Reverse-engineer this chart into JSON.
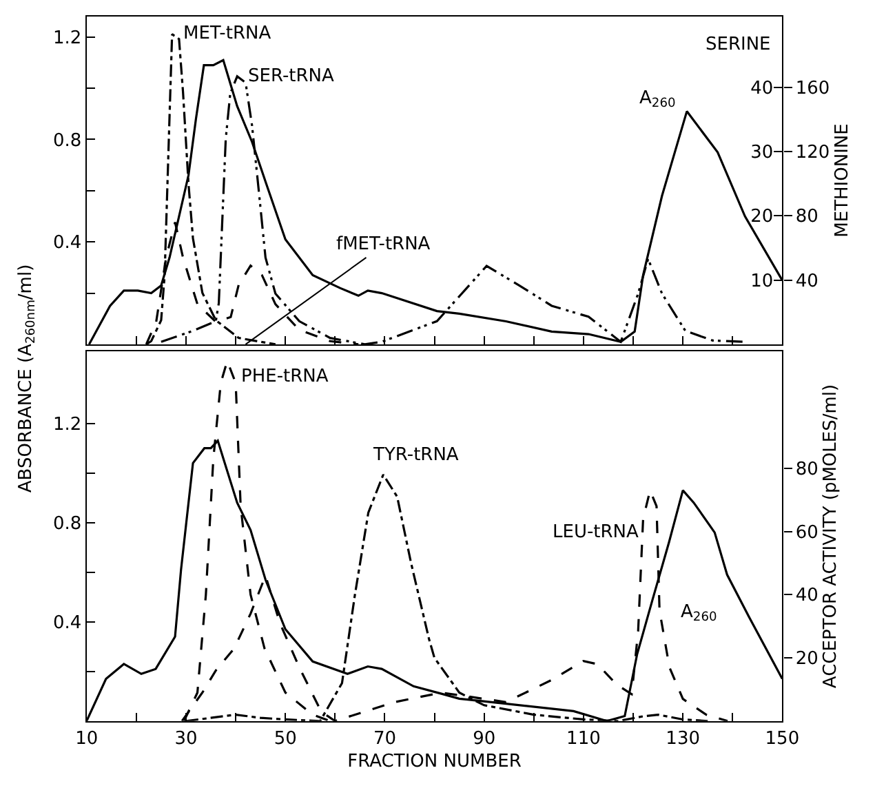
{
  "chart_data": [
    {
      "type": "line",
      "ylabel": "ABSORBANCE (A$_{260nm}$/ml)",
      "y2label": "METHIONINE",
      "y3label": "SERINE",
      "xlim": [
        10,
        150
      ],
      "xticks": [
        10,
        {
          "value": 20,
          "label": null
        },
        30,
        {
          "value": 40,
          "label": null
        },
        50,
        {
          "value": 60,
          "label": null
        },
        70,
        {
          "value": 80,
          "label": null
        },
        90,
        {
          "value": 100,
          "label": null
        },
        110,
        {
          "value": 120,
          "label": null
        },
        130,
        {
          "value": 140,
          "label": null
        },
        150
      ],
      "ylim": [
        0,
        1.28
      ],
      "yticks": [
        {
          "value": 0.2,
          "label": null
        },
        0.4,
        {
          "value": 0.6,
          "label": null
        },
        0.8,
        {
          "value": 1.0,
          "label": null
        },
        1.2
      ],
      "y2lim": [
        0,
        204
      ],
      "y2ticks": [
        40,
        80,
        120,
        160
      ],
      "y3lim": [
        0,
        51
      ],
      "y3ticks": [
        10,
        20,
        30,
        40
      ],
      "tick_labels": "y",
      "series": [
        {
          "name": "A$_{260}$",
          "color": "#000000",
          "line_style": "solid",
          "x": [
            10.5,
            14.7,
            17.5,
            20.3,
            23,
            25,
            26.7,
            28.6,
            30.5,
            32,
            33.6,
            35.5,
            37.5,
            38.9,
            40.3,
            43.3,
            46.1,
            50,
            55.5,
            61,
            64.7,
            66.6,
            69.4,
            80.5,
            85,
            94.4,
            103.6,
            111,
            117.5,
            120.3,
            122,
            125.8,
            130.8,
            137,
            142.5,
            150
          ],
          "values": [
            0,
            0.15,
            0.21,
            0.21,
            0.2,
            0.23,
            0.34,
            0.5,
            0.66,
            0.88,
            1.09,
            1.09,
            1.11,
            1.02,
            0.93,
            0.79,
            0.63,
            0.41,
            0.27,
            0.22,
            0.19,
            0.21,
            0.2,
            0.13,
            0.12,
            0.09,
            0.05,
            0.04,
            0.01,
            0.05,
            0.27,
            0.58,
            0.91,
            0.75,
            0.5,
            0.25
          ]
        },
        {
          "name": "MET-tRNA",
          "color": "#000000",
          "line_style": "dashdot",
          "axis": "y2",
          "x": [
            22,
            23,
            25,
            25.7,
            27.2,
            28.6,
            29.4,
            30.5,
            31.4,
            33.3,
            36,
            40.6,
            48
          ],
          "values": [
            0,
            2,
            15,
            43,
            193,
            190,
            157,
            100,
            66,
            32,
            15,
            4,
            0
          ]
        },
        {
          "color": "#000000",
          "line_style": "dashed",
          "axis": "y2",
          "x": [
            22,
            24,
            26,
            27.8,
            29.4,
            32.3,
            36,
            39,
            40.6,
            43,
            45.3,
            48,
            52.8,
            59,
            64.7
          ],
          "values": [
            0,
            14,
            54,
            76,
            54,
            25,
            14,
            17,
            37,
            49,
            43,
            25,
            9,
            2,
            0
          ]
        },
        {
          "name": "SER-tRNA",
          "color": "#000000",
          "line_style": "dashdotdot",
          "axis": "y3",
          "x": [
            25,
            31.4,
            36,
            36.6,
            38,
            38.9,
            40.3,
            42,
            43.3,
            44.7,
            46,
            48,
            52.8,
            59,
            66,
            69.4,
            80.5,
            90.5,
            97,
            103.6,
            111,
            117.5,
            121,
            123,
            125.8,
            130.5,
            136,
            142
          ],
          "values": [
            0.4,
            2.1,
            3.6,
            6.4,
            32,
            39,
            41.7,
            40.7,
            34,
            23.5,
            13.5,
            7.9,
            3.6,
            1,
            0,
            0.4,
            3.6,
            12.2,
            9.2,
            6,
            4.3,
            0.4,
            7.9,
            13.3,
            7.9,
            2.1,
            0.6,
            0.4
          ]
        }
      ],
      "annotations": [
        {
          "text": "fMET-tRNA",
          "x": 42,
          "y": 0
        }
      ]
    },
    {
      "type": "line",
      "xlabel": "FRACTION NUMBER",
      "y2label": "ACCEPTOR ACTIVITY (pMOLES/ml)",
      "xlim": [
        10,
        150
      ],
      "xticks": [
        10,
        {
          "value": 20,
          "label": null
        },
        30,
        {
          "value": 40,
          "label": null
        },
        50,
        {
          "value": 60,
          "label": null
        },
        70,
        {
          "value": 80,
          "label": null
        },
        90,
        {
          "value": 100,
          "label": null
        },
        110,
        {
          "value": 120,
          "label": null
        },
        130,
        {
          "value": 140,
          "label": null
        },
        150
      ],
      "ylim": [
        0,
        1.49
      ],
      "yticks": [
        {
          "value": 0.2,
          "label": null
        },
        0.4,
        {
          "value": 0.6,
          "label": null
        },
        0.8,
        {
          "value": 1.0,
          "label": null
        },
        1.2
      ],
      "y2lim": [
        0,
        117
      ],
      "y2ticks": [
        20,
        40,
        60,
        80
      ],
      "series": [
        {
          "name": "A$_{260}$",
          "color": "#000000",
          "line_style": "solid",
          "x": [
            10,
            13.9,
            17.5,
            21,
            23.9,
            27.8,
            29,
            31.4,
            33.7,
            35,
            36.4,
            37.8,
            40.3,
            43,
            46,
            50,
            55.5,
            62.5,
            66.6,
            69.4,
            75.8,
            81.4,
            85,
            94.4,
            108,
            114.7,
            118.3,
            120.8,
            123.9,
            127.2,
            130,
            132.2,
            136.4,
            138.9,
            143.3,
            150
          ],
          "values": [
            0,
            0.17,
            0.23,
            0.19,
            0.21,
            0.34,
            0.61,
            1.04,
            1.1,
            1.1,
            1.13,
            1.04,
            0.88,
            0.77,
            0.57,
            0.37,
            0.24,
            0.19,
            0.22,
            0.21,
            0.14,
            0.11,
            0.09,
            0.07,
            0.04,
            0,
            0.02,
            0.27,
            0.49,
            0.72,
            0.93,
            0.88,
            0.76,
            0.59,
            0.42,
            0.17
          ]
        },
        {
          "name": "PHE-tRNA",
          "color": "#000000",
          "line_style": "dashed",
          "axis": "y2",
          "x": [
            29.6,
            32.3,
            34,
            35.5,
            37,
            38.3,
            40,
            41,
            43,
            45.8,
            50,
            55.5,
            59
          ],
          "values": [
            0,
            9,
            40,
            83,
            107,
            114,
            107,
            68,
            40,
            23,
            9,
            2,
            0
          ]
        },
        {
          "name": "TYR-tRNA",
          "color": "#000000",
          "line_style": "dashdot",
          "axis": "y2",
          "x": [
            30,
            35,
            40,
            45,
            50,
            57,
            61.4,
            64,
            66.7,
            69.7,
            72.5,
            75.3,
            78.9,
            80,
            85,
            90,
            100,
            110,
            117,
            122,
            125,
            130,
            135
          ],
          "values": [
            0,
            1,
            2,
            1,
            0.5,
            0,
            12,
            40,
            66,
            78,
            71,
            50,
            26,
            20,
            9,
            5,
            2,
            0.5,
            0,
            1.5,
            2,
            0.5,
            0
          ]
        },
        {
          "name": "LEU-tRNA",
          "color": "#000000",
          "line_style": "dashed",
          "axis": "y2",
          "x": [
            29.2,
            33.3,
            36,
            39.7,
            43,
            46,
            48.9,
            52.8,
            57.2,
            60,
            72,
            81.4,
            94.4,
            103.6,
            110,
            112.8,
            116.7,
            119.7,
            121,
            122,
            123.4,
            124.7,
            125.3,
            127.3,
            130,
            134.7,
            139
          ],
          "values": [
            0,
            9,
            16,
            23,
            34,
            46,
            31,
            17,
            3,
            0,
            6,
            9,
            6,
            13,
            19,
            18,
            11.5,
            8.5,
            28.5,
            64,
            73,
            68,
            35,
            17,
            7,
            2,
            0
          ]
        }
      ]
    }
  ]
}
